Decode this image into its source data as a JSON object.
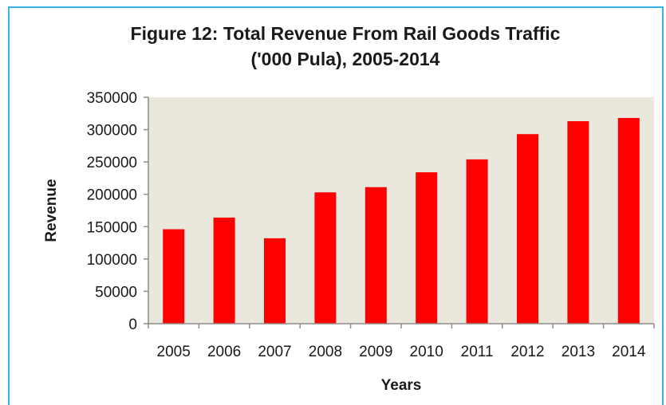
{
  "chart_data": {
    "type": "bar",
    "title": "Figure 12: Total Revenue From Rail Goods Traffic",
    "subtitle": "('000 Pula), 2005-2014",
    "xlabel": "Years",
    "ylabel": "Revenue",
    "categories": [
      "2005",
      "2006",
      "2007",
      "2008",
      "2009",
      "2010",
      "2011",
      "2012",
      "2013",
      "2014"
    ],
    "values": [
      146000,
      164000,
      132000,
      203000,
      211000,
      234000,
      254000,
      293000,
      313000,
      318000
    ],
    "ylim": [
      0,
      350000
    ],
    "yticks": [
      "0",
      "50000",
      "100000",
      "150000",
      "200000",
      "250000",
      "300000",
      "350000"
    ],
    "grid": false,
    "legend": "none",
    "colors": {
      "bar": "#ff0000",
      "plot_bg": "#eae7dd",
      "axis": "#8c8c8c",
      "frame_border": "#39b2e3"
    }
  }
}
